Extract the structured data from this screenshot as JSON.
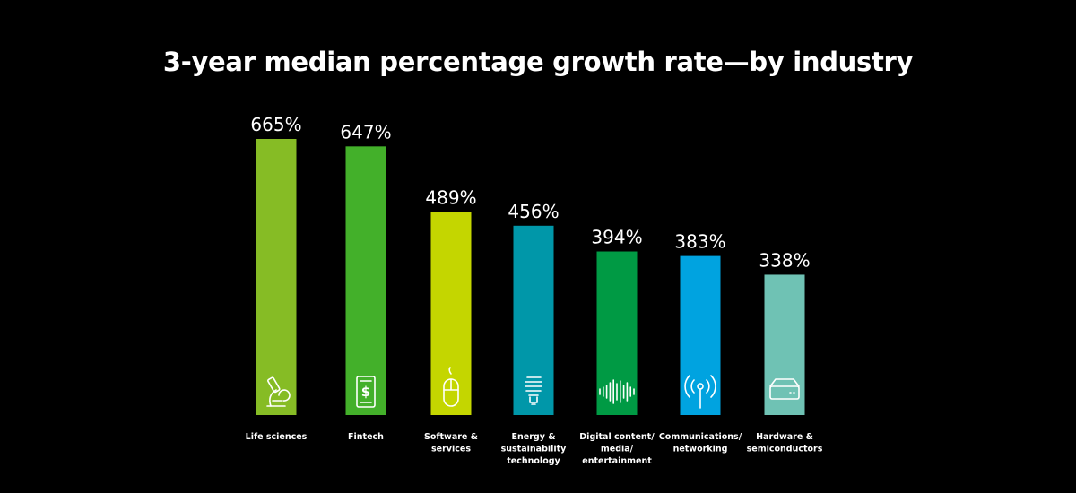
{
  "title": "3-year median percentage growth rate—by industry",
  "chart_data": {
    "type": "bar",
    "title": "3-year median percentage growth rate—by industry",
    "xlabel": "",
    "ylabel": "",
    "unit": "%",
    "grid": false,
    "legend": "none",
    "categories": [
      "Life sciences",
      "Fintech",
      "Software & services",
      "Energy & sustainability technology",
      "Digital content/ media/ entertainment",
      "Communications/ networking",
      "Hardware & semiconductors"
    ],
    "category_lines": [
      [
        "Life sciences"
      ],
      [
        "Fintech"
      ],
      [
        "Software &",
        "services"
      ],
      [
        "Energy &",
        "sustainability",
        "technology"
      ],
      [
        "Digital content/",
        "media/",
        "entertainment"
      ],
      [
        "Communications/",
        "networking"
      ],
      [
        "Hardware &",
        "semiconductors"
      ]
    ],
    "values": [
      665,
      647,
      489,
      456,
      394,
      383,
      338
    ],
    "value_labels": [
      "665%",
      "647%",
      "489%",
      "456%",
      "394%",
      "383%",
      "338%"
    ],
    "colors": [
      "#86bc25",
      "#43b02a",
      "#c4d600",
      "#0097a9",
      "#009a44",
      "#00a3e0",
      "#6fc2b4"
    ],
    "icons": [
      "microscope-icon",
      "mobile-payment-icon",
      "computer-mouse-icon",
      "light-bulb-icon",
      "sound-wave-icon",
      "antenna-icon",
      "hard-drive-icon"
    ],
    "ylim": [
      0,
      665
    ]
  }
}
